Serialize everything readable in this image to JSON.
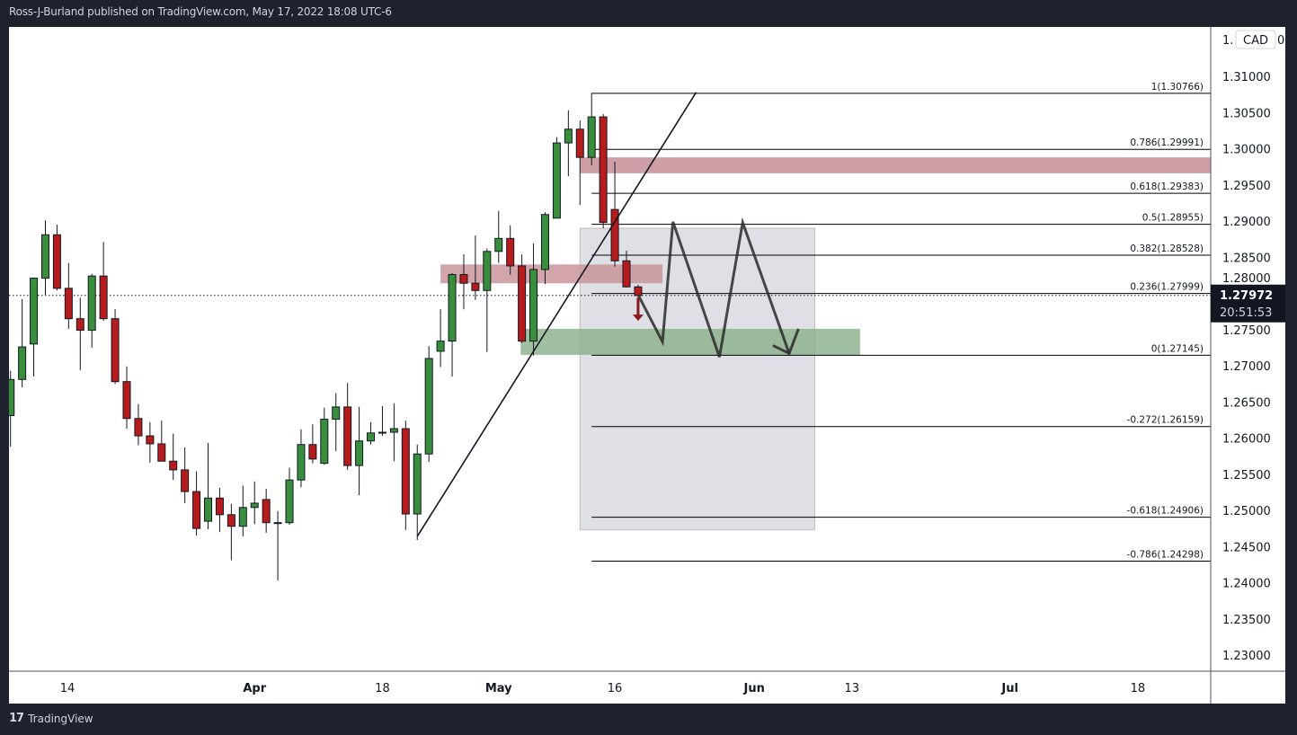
{
  "header": {
    "published_text": "Ross-J-Burland published on TradingView.com, May 17, 2022 18:08 UTC-6"
  },
  "footer": {
    "brand": "TradingView",
    "logo_glyph": "17"
  },
  "price_axis": {
    "currency_badge": "CAD",
    "partial_label_left": "1.",
    "partial_label_right": "0",
    "current_price": "1.27972",
    "countdown": "20:51:53"
  },
  "colors": {
    "up": "#388e3c",
    "down": "#b71c1c",
    "resistance_zone": "#c9959b",
    "support_zone": "#8fb38f",
    "projection_box": "#dcdde2",
    "arrow": "#8b1a1f"
  },
  "chart_data": {
    "type": "candlestick",
    "symbol_quote": "CAD",
    "ylim": [
      1.2275,
      1.3175
    ],
    "y_ticks": [
      "1.31000",
      "1.30500",
      "1.30000",
      "1.29500",
      "1.29000",
      "1.28500",
      "1.28000",
      "1.27500",
      "1.27000",
      "1.26500",
      "1.26000",
      "1.25500",
      "1.25000",
      "1.24500",
      "1.24000",
      "1.23500",
      "1.23000"
    ],
    "x_ticks": [
      {
        "label": "14",
        "bar": 4.9,
        "bold": false
      },
      {
        "label": "Apr",
        "bar": 21,
        "bold": true
      },
      {
        "label": "18",
        "bar": 32,
        "bold": false
      },
      {
        "label": "May",
        "bar": 42,
        "bold": true
      },
      {
        "label": "16",
        "bar": 52,
        "bold": false
      },
      {
        "label": "Jun",
        "bar": 64,
        "bold": true
      },
      {
        "label": "13",
        "bar": 72.4,
        "bold": false
      },
      {
        "label": "Jul",
        "bar": 86,
        "bold": true
      },
      {
        "label": "18",
        "bar": 97,
        "bold": false
      }
    ],
    "ohlc": [
      [
        1.2631,
        1.2693,
        1.2588,
        1.2681
      ],
      [
        1.2681,
        1.2792,
        1.267,
        1.2726
      ],
      [
        1.273,
        1.2822,
        1.2685,
        1.2821
      ],
      [
        1.2821,
        1.2901,
        1.2798,
        1.2881
      ],
      [
        1.2881,
        1.2895,
        1.2804,
        1.2807
      ],
      [
        1.2807,
        1.2842,
        1.2751,
        1.2765
      ],
      [
        1.2765,
        1.2794,
        1.2694,
        1.2749
      ],
      [
        1.2749,
        1.2827,
        1.2725,
        1.2824
      ],
      [
        1.2824,
        1.2871,
        1.2762,
        1.2765
      ],
      [
        1.2765,
        1.2778,
        1.2675,
        1.2678
      ],
      [
        1.2678,
        1.2699,
        1.2613,
        1.2627
      ],
      [
        1.2627,
        1.2647,
        1.259,
        1.2603
      ],
      [
        1.2603,
        1.2622,
        1.2566,
        1.2592
      ],
      [
        1.2592,
        1.2624,
        1.2568,
        1.2568
      ],
      [
        1.2568,
        1.2606,
        1.2542,
        1.2556
      ],
      [
        1.2556,
        1.2587,
        1.251,
        1.2526
      ],
      [
        1.2526,
        1.2554,
        1.2465,
        1.2475
      ],
      [
        1.2485,
        1.2593,
        1.2474,
        1.2517
      ],
      [
        1.2517,
        1.2531,
        1.247,
        1.2494
      ],
      [
        1.2494,
        1.2509,
        1.2431,
        1.2478
      ],
      [
        1.2478,
        1.2534,
        1.2464,
        1.2504
      ],
      [
        1.2504,
        1.254,
        1.2481,
        1.251
      ],
      [
        1.2515,
        1.253,
        1.2469,
        1.2483
      ],
      [
        1.2483,
        1.2499,
        1.2403,
        1.2482
      ],
      [
        1.2483,
        1.2559,
        1.248,
        1.2542
      ],
      [
        1.2542,
        1.2612,
        1.2532,
        1.2591
      ],
      [
        1.2591,
        1.2619,
        1.2565,
        1.2571
      ],
      [
        1.2565,
        1.2642,
        1.2563,
        1.2626
      ],
      [
        1.2626,
        1.2662,
        1.2582,
        1.2643
      ],
      [
        1.2643,
        1.2676,
        1.2556,
        1.2562
      ],
      [
        1.2562,
        1.2643,
        1.2521,
        1.2596
      ],
      [
        1.2596,
        1.2622,
        1.2591,
        1.2607
      ],
      [
        1.2608,
        1.2644,
        1.2603,
        1.2607
      ],
      [
        1.2608,
        1.2648,
        1.2568,
        1.2613
      ],
      [
        1.2613,
        1.2624,
        1.2473,
        1.2495
      ],
      [
        1.2495,
        1.2591,
        1.2459,
        1.2578
      ],
      [
        1.2578,
        1.2727,
        1.2567,
        1.271
      ],
      [
        1.272,
        1.2778,
        1.2698,
        1.2734
      ],
      [
        1.2734,
        1.2828,
        1.2685,
        1.2826
      ],
      [
        1.2826,
        1.2854,
        1.2778,
        1.2814
      ],
      [
        1.2814,
        1.288,
        1.2791,
        1.2804
      ],
      [
        1.2804,
        1.2862,
        1.2719,
        1.2858
      ],
      [
        1.2858,
        1.2914,
        1.2842,
        1.2876
      ],
      [
        1.2876,
        1.2894,
        1.2826,
        1.2838
      ],
      [
        1.2838,
        1.2854,
        1.2731,
        1.2734
      ],
      [
        1.2734,
        1.2869,
        1.2714,
        1.2833
      ],
      [
        1.2833,
        1.2912,
        1.2813,
        1.2909
      ],
      [
        1.2904,
        1.3016,
        1.2904,
        1.3008
      ],
      [
        1.3008,
        1.3053,
        1.2962,
        1.3027
      ],
      [
        1.3027,
        1.3039,
        1.2922,
        1.2988
      ],
      [
        1.2988,
        1.3077,
        1.2977,
        1.3044
      ],
      [
        1.3044,
        1.3048,
        1.289,
        1.2898
      ],
      [
        1.2916,
        1.2982,
        1.2837,
        1.2845
      ],
      [
        1.2845,
        1.2859,
        1.2808,
        1.2809
      ],
      [
        1.2809,
        1.2812,
        1.2798,
        1.2797
      ]
    ],
    "last_price": 1.27972,
    "fibonacci": {
      "start_bar": 50,
      "levels": [
        {
          "label": "1(1.30766)",
          "price": 1.30766
        },
        {
          "label": "0.786(1.29991)",
          "price": 1.29991
        },
        {
          "label": "0.618(1.29383)",
          "price": 1.29383
        },
        {
          "label": "0.5(1.28955)",
          "price": 1.28955
        },
        {
          "label": "0.382(1.28528)",
          "price": 1.28528
        },
        {
          "label": "0.236(1.27999)",
          "price": 1.27999
        },
        {
          "label": "0(1.27145)",
          "price": 1.27145
        },
        {
          "label": "-0.272(1.26159)",
          "price": 1.26159
        },
        {
          "label": "-0.618(1.24906)",
          "price": 1.24906
        },
        {
          "label": "-0.786(1.24298)",
          "price": 1.24298
        }
      ]
    },
    "trendline": [
      [
        35.0,
        1.2464
      ],
      [
        59.0,
        1.3078
      ]
    ],
    "zones": [
      {
        "name": "projection-box",
        "bars": [
          49.0,
          69.2
        ],
        "prices": [
          1.289,
          1.2473
        ],
        "color": "#dcdde2",
        "opacity": 0.9
      },
      {
        "name": "resistance-zone-upper",
        "bars": [
          49.0,
          null
        ],
        "prices": [
          1.2988,
          1.2966
        ],
        "color": "#c9959b",
        "opacity": 0.9
      },
      {
        "name": "resistance-zone-middle",
        "bars": [
          37.0,
          56.1
        ],
        "prices": [
          1.284,
          1.2814
        ],
        "color": "#c9959b",
        "opacity": 0.85
      },
      {
        "name": "support-zone",
        "bars": [
          43.9,
          73.1
        ],
        "prices": [
          1.2751,
          1.2715
        ],
        "color": "#8fb38f",
        "opacity": 0.85
      }
    ],
    "projection_path": [
      [
        54.0,
        1.2798
      ],
      [
        56.1,
        1.2733
      ],
      [
        57.0,
        1.2899
      ],
      [
        61.0,
        1.2712
      ],
      [
        63.0,
        1.2898
      ],
      [
        67.0,
        1.2717
      ]
    ],
    "projection_arrowhead": [
      [
        65.6,
        1.2728
      ],
      [
        67.0,
        1.2717
      ],
      [
        67.8,
        1.2751
      ]
    ],
    "down_arrow": {
      "bar": 54.0,
      "from": 1.2794,
      "to": 1.2762
    }
  }
}
